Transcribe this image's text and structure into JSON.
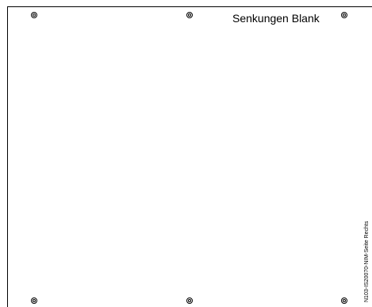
{
  "panel": {
    "title": "Senkungen Blank",
    "side_code": "N103-IS20070-NIM-Seite Rechts"
  },
  "mounting_holes": [
    {
      "name": "top-left"
    },
    {
      "name": "top-middle"
    },
    {
      "name": "top-right"
    },
    {
      "name": "bottom-left"
    },
    {
      "name": "bottom-middle"
    },
    {
      "name": "bottom-right"
    }
  ],
  "colors": {
    "line": "#000000",
    "background": "#ffffff"
  }
}
